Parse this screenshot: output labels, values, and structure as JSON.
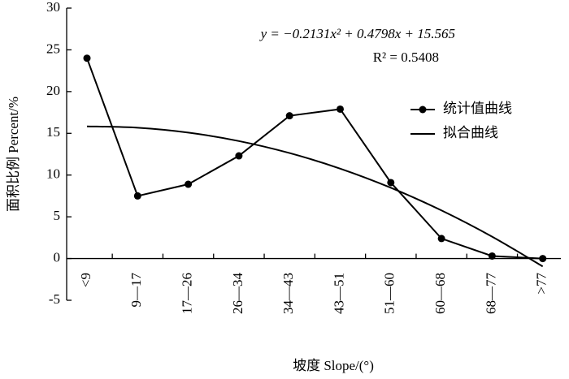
{
  "chart_data": {
    "type": "line",
    "categories": [
      "<9",
      "9—17",
      "17—26",
      "26—34",
      "34—43",
      "43—51",
      "51—60",
      "60—68",
      "68—77",
      ">77"
    ],
    "series": [
      {
        "name": "统计值曲线",
        "color": "#000000",
        "marker": "circle",
        "smooth": false,
        "values": [
          24,
          7.5,
          8.9,
          12.3,
          17.1,
          17.9,
          9.1,
          2.4,
          0.3,
          0
        ]
      },
      {
        "name": "拟合曲线",
        "color": "#000000",
        "marker": "none",
        "smooth": true,
        "values": [
          15.8317,
          15.6722,
          15.0865,
          14.0746,
          12.6365,
          10.7722,
          8.4817,
          5.765,
          2.6221,
          -0.947
        ]
      }
    ],
    "ylim": [
      -5,
      30
    ],
    "yticks": [
      -5,
      0,
      5,
      10,
      15,
      20,
      25,
      30
    ],
    "y_label": "面积比例 Percent/%",
    "x_label": "坡度 Slope/(°)",
    "annotations": [
      "y = −0.2131x² + 0.4798x + 15.565",
      "R² = 0.5408"
    ],
    "legend": "upper right"
  }
}
